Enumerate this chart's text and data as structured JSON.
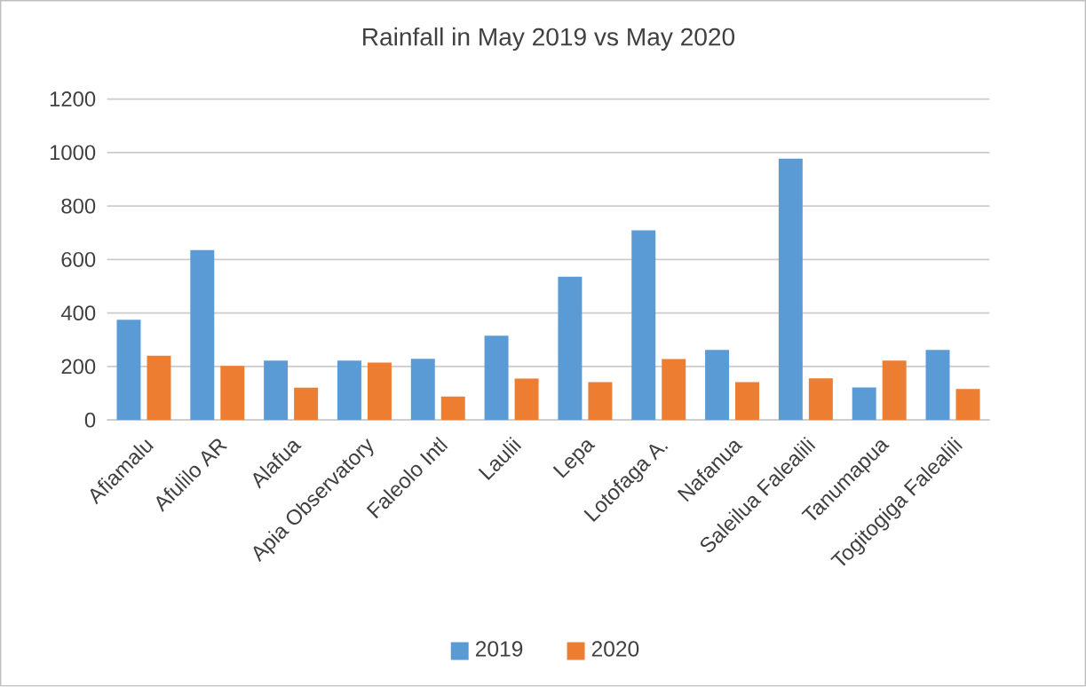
{
  "chart_data": {
    "type": "bar",
    "title": "Rainfall in May 2019 vs May 2020",
    "categories": [
      "Afiamalu",
      "Afulilo AR",
      "Alafua",
      "Apia Observatory",
      "Faleolo Intl",
      "Laulii",
      "Lepa",
      "Lotofaga A.",
      "Nafanua",
      "Saleilua Falealili",
      "Tanumapua",
      "Togitogiga Falealili"
    ],
    "series": [
      {
        "name": "2019",
        "color": "#5b9bd5",
        "values": [
          375,
          635,
          222,
          222,
          229,
          315,
          536,
          709,
          262,
          977,
          122,
          262
        ]
      },
      {
        "name": "2020",
        "color": "#ed7d31",
        "values": [
          240,
          202,
          121,
          215,
          88,
          155,
          142,
          228,
          142,
          156,
          222,
          116
        ]
      }
    ],
    "ylim": [
      0,
      1200
    ],
    "yticks": [
      0,
      200,
      400,
      600,
      800,
      1000,
      1200
    ],
    "grid": "y",
    "legend": "bottom"
  }
}
